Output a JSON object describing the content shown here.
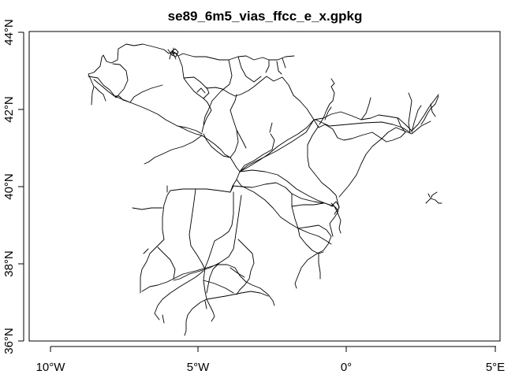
{
  "title": "se89_6m5_vias_ffcc_e_x.gpkg",
  "map": {
    "x_axis": {
      "ticks": [
        "10°W",
        "5°W",
        "0°",
        "5°E"
      ],
      "values": [
        -10,
        -5,
        0,
        5
      ]
    },
    "y_axis": {
      "ticks": [
        "36°N",
        "38°N",
        "40°N",
        "42°N",
        "44°N"
      ],
      "values": [
        36,
        38,
        40,
        42,
        44
      ]
    },
    "extent": {
      "lon": [
        -10.1,
        5.0
      ],
      "lat": [
        35.9,
        44.0
      ]
    },
    "feature_type": "railway lines",
    "line_color": "#000000"
  }
}
